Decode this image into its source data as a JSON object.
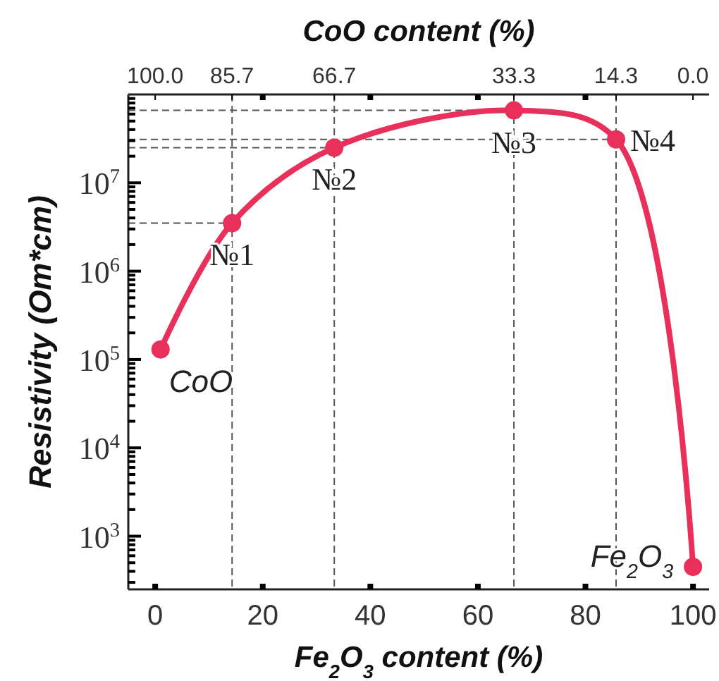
{
  "chart_data": {
    "type": "line",
    "xlabel": "Fe$_{2}$O$_{3}$ content (%)",
    "x2label": "CoO content (%)",
    "ylabel": "Resistivity (Om*cm)",
    "x": [
      1,
      14.3,
      33.3,
      66.7,
      85.7,
      100
    ],
    "series": [
      {
        "color": "#e8305a",
        "values": [
          130000,
          3500000,
          25000000,
          66000000,
          31000000,
          450
        ]
      }
    ],
    "xlim": [
      -5,
      103
    ],
    "xticks": [
      0,
      20,
      40,
      60,
      80,
      100
    ],
    "x2lim": [
      105,
      -3
    ],
    "x2ticks": [
      {
        "value": 100,
        "label": "100.0"
      },
      85.7,
      66.7,
      33.3,
      14.3,
      {
        "value": 0,
        "label": "0.0"
      },
      {
        "value": 80,
        "label": null
      },
      {
        "value": 60,
        "label": null
      },
      {
        "value": 40,
        "label": null
      },
      {
        "value": 20,
        "label": null
      }
    ],
    "log": "y",
    "ylim": [
      250,
      100000000
    ],
    "yticks": [
      {
        "value": 1000,
        "label": "10$^{3}$"
      },
      {
        "value": 10000,
        "label": "10$^{4}$"
      },
      {
        "value": 100000,
        "label": "10$^{5}$"
      },
      {
        "value": 1000000,
        "label": "10$^{6}$"
      },
      {
        "value": 10000000,
        "label": "10$^{7}$"
      }
    ],
    "grid": false,
    "marker": "circle",
    "line_style": "solid",
    "ref_lines": [
      {
        "axis": "x",
        "value": 14.3,
        "line_style": "dashed",
        "color": "#555555"
      },
      {
        "axis": "x",
        "value": 33.3,
        "line_style": "dashed",
        "color": "#555555"
      },
      {
        "axis": "x",
        "value": 66.7,
        "line_style": "dashed",
        "color": "#555555"
      },
      {
        "axis": "x",
        "value": 85.7,
        "line_style": "dashed",
        "color": "#555555"
      },
      {
        "axis": "y",
        "value": 3500000,
        "line_style": "dashed",
        "color": "#555555"
      },
      {
        "axis": "y",
        "value": 25000000,
        "line_style": "dashed",
        "color": "#555555"
      },
      {
        "axis": "y",
        "value": 66000000,
        "line_style": "dashed",
        "color": "#555555"
      },
      {
        "axis": "y",
        "value": 31000000,
        "line_style": "dashed",
        "color": "#555555"
      }
    ],
    "annotations": [
      {
        "text": "CoO",
        "x": 1,
        "y": 130000
      },
      {
        "text": "№1",
        "x": 14.3,
        "y": 3500000
      },
      {
        "text": "№2",
        "x": 33.3,
        "y": 25000000
      },
      {
        "text": "№3",
        "x": 66.7,
        "y": 66000000
      },
      {
        "text": "№4",
        "x": 85.7,
        "y": 31000000
      },
      {
        "text": "Fe$_{2}$O$_{3}$",
        "x": 100,
        "y": 450
      }
    ]
  }
}
